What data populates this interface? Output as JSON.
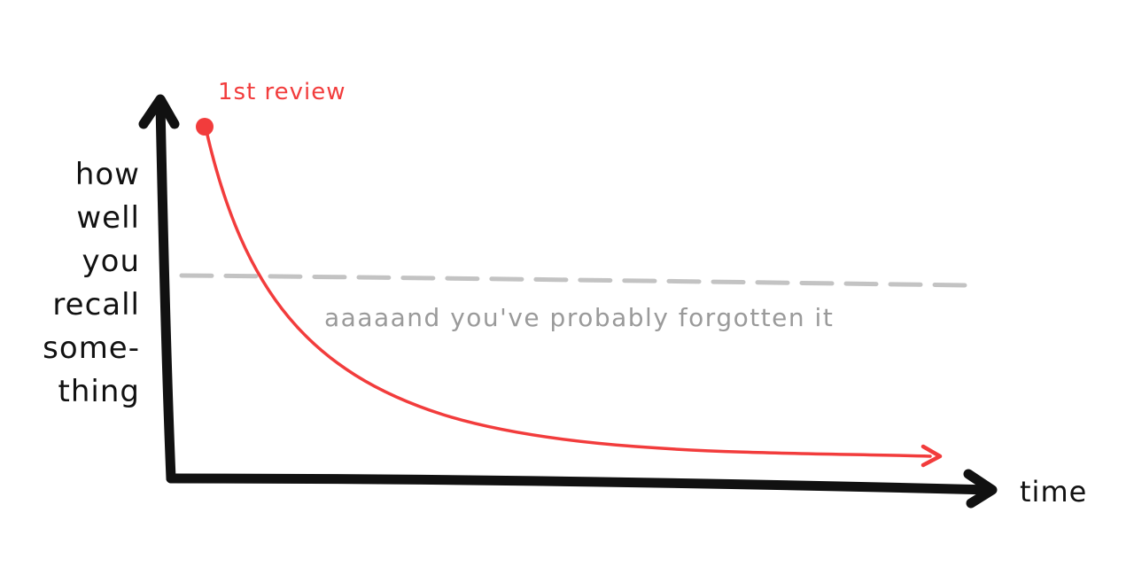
{
  "colors": {
    "ink": "#111111",
    "curve": "#f23c3c",
    "threshold": "#b9b9b9",
    "threshold_text": "#9a9a9a"
  },
  "axes": {
    "y_label_lines": [
      "how",
      "well",
      "you",
      "recall",
      "some-",
      "thing"
    ],
    "x_label": "time"
  },
  "review": {
    "label": "1st review"
  },
  "threshold": {
    "label": "aaaaand you've probably forgotten it"
  }
}
